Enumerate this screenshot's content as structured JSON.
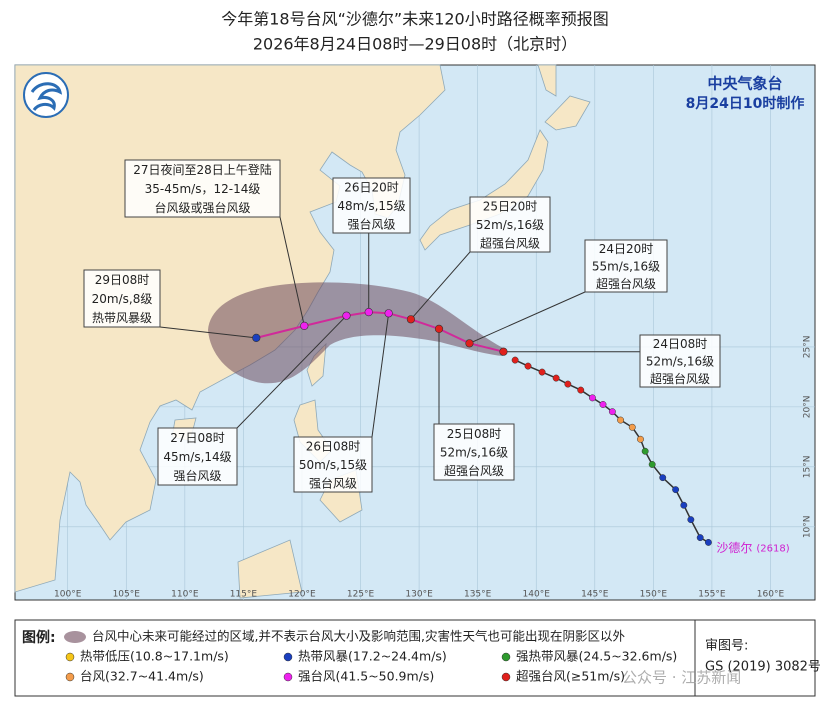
{
  "title": "今年第18号台风“沙德尔”未来120小时路径概率预报图",
  "subtitle": "2026年8月24日08时—29日08时（北京时）",
  "agency": "中央气象台",
  "issued": "8月24日10时制作",
  "typhoon_name": "沙德尔",
  "typhoon_code": "(2618)",
  "map": {
    "lonlim": [
      95.5,
      163.8
    ],
    "latlim": [
      3.9,
      48.5
    ],
    "lon_ticks": [
      {
        "value": 100,
        "label": "100°E"
      },
      {
        "value": 105,
        "label": "105°E"
      },
      {
        "value": 110,
        "label": "110°E"
      },
      {
        "value": 115,
        "label": "115°E"
      },
      {
        "value": 120,
        "label": "120°E"
      },
      {
        "value": 125,
        "label": "125°E"
      },
      {
        "value": 130,
        "label": "130°E"
      },
      {
        "value": 135,
        "label": "135°E"
      },
      {
        "value": 140,
        "label": "140°E"
      },
      {
        "value": 145,
        "label": "145°E"
      },
      {
        "value": 150,
        "label": "150°E"
      },
      {
        "value": 155,
        "label": "155°E"
      },
      {
        "value": 160,
        "label": "160°E"
      }
    ],
    "lat_ticks": [
      {
        "value": 10,
        "label": "10°N"
      },
      {
        "value": 15,
        "label": "15°N"
      },
      {
        "value": 20,
        "label": "20°N"
      },
      {
        "value": 25,
        "label": "25°N"
      }
    ]
  },
  "observed": [
    {
      "lon": 154.7,
      "lat": 8.7,
      "level": 1
    },
    {
      "lon": 154.0,
      "lat": 9.1,
      "level": 1
    },
    {
      "lon": 153.2,
      "lat": 10.6,
      "level": 1
    },
    {
      "lon": 152.6,
      "lat": 11.8,
      "level": 1
    },
    {
      "lon": 151.9,
      "lat": 13.1,
      "level": 1
    },
    {
      "lon": 150.8,
      "lat": 14.1,
      "level": 1
    },
    {
      "lon": 149.9,
      "lat": 15.2,
      "level": 2
    },
    {
      "lon": 149.3,
      "lat": 16.3,
      "level": 2
    },
    {
      "lon": 148.9,
      "lat": 17.3,
      "level": 3
    },
    {
      "lon": 148.2,
      "lat": 18.3,
      "level": 3
    },
    {
      "lon": 147.2,
      "lat": 18.9,
      "level": 3
    },
    {
      "lon": 146.5,
      "lat": 19.6,
      "level": 4
    },
    {
      "lon": 145.7,
      "lat": 20.2,
      "level": 4
    },
    {
      "lon": 144.8,
      "lat": 20.75,
      "level": 4
    },
    {
      "lon": 143.8,
      "lat": 21.4,
      "level": 5
    },
    {
      "lon": 142.7,
      "lat": 21.9,
      "level": 5
    },
    {
      "lon": 141.7,
      "lat": 22.4,
      "level": 5
    },
    {
      "lon": 140.5,
      "lat": 22.9,
      "level": 5
    },
    {
      "lon": 139.3,
      "lat": 23.4,
      "level": 5
    },
    {
      "lon": 138.2,
      "lat": 23.9,
      "level": 5
    }
  ],
  "forecast": [
    {
      "lon": 137.2,
      "lat": 24.6,
      "level": 5,
      "label": [
        "24日08时",
        "52m/s,16级",
        "超强台风级"
      ]
    },
    {
      "lon": 134.3,
      "lat": 25.3,
      "level": 5,
      "label": [
        "24日20时",
        "55m/s,16级",
        "超强台风级"
      ]
    },
    {
      "lon": 131.7,
      "lat": 26.5,
      "level": 5,
      "label": [
        "25日08时",
        "52m/s,16级",
        "超强台风级"
      ]
    },
    {
      "lon": 129.3,
      "lat": 27.3,
      "level": 5,
      "label": [
        "25日20时",
        "52m/s,16级",
        "超强台风级"
      ]
    },
    {
      "lon": 127.4,
      "lat": 27.8,
      "level": 4,
      "label": [
        "26日08时",
        "50m/s,15级",
        "强台风级"
      ]
    },
    {
      "lon": 125.7,
      "lat": 27.9,
      "level": 4,
      "label": [
        "26日20时",
        "48m/s,15级",
        "强台风级"
      ]
    },
    {
      "lon": 123.8,
      "lat": 27.6,
      "level": 4,
      "label": [
        "27日08时",
        "45m/s,14级",
        "强台风级"
      ]
    },
    {
      "lon": 120.2,
      "lat": 26.75,
      "level": 4,
      "label": [
        "27日夜间至28日上午登陆",
        "35-45m/s，12-14级",
        "台风级或强台风级"
      ]
    },
    {
      "lon": 116.1,
      "lat": 25.75,
      "level": 1,
      "label": [
        "29日08时",
        "20m/s,8级",
        "热带风暴级"
      ]
    }
  ],
  "legend": {
    "title": "图例:",
    "cone": "台风中心未来可能经过的区域,并不表示台风大小及影响范围,灾害性天气也可能出现在阴影区以外",
    "levels": [
      {
        "name": "热带低压(10.8~17.1m/s)",
        "color": "#f5c518"
      },
      {
        "name": "热带风暴(17.2~24.4m/s)",
        "color": "#1a3fbf"
      },
      {
        "name": "强热带风暴(24.5~32.6m/s)",
        "color": "#2e9a2e"
      },
      {
        "name": "台风(32.7~41.4m/s)",
        "color": "#f39c4a"
      },
      {
        "name": "强台风(41.5~50.9m/s)",
        "color": "#ee22ee"
      },
      {
        "name": "超强台风(≥51m/s)",
        "color": "#e0201c"
      }
    ]
  },
  "review": {
    "label": "审图号:",
    "number": "GS (2019) 3082号"
  },
  "watermark": "公众号 · 江苏新闻"
}
